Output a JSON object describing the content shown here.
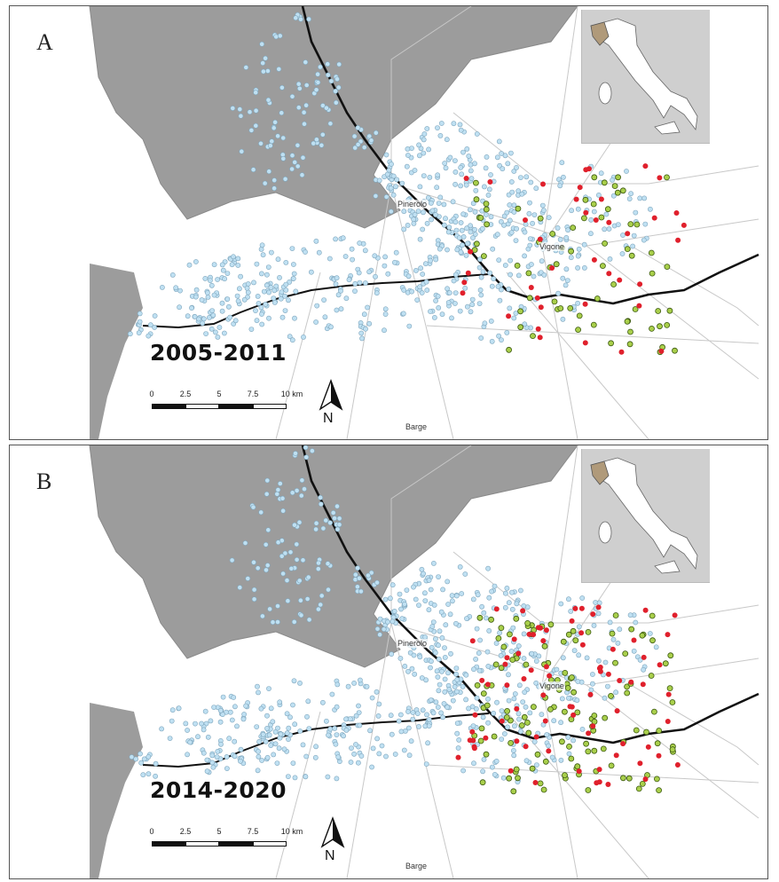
{
  "panels": [
    {
      "letter": "A",
      "period": "2005-2011"
    },
    {
      "letter": "B",
      "period": "2014-2020"
    }
  ],
  "towns": {
    "pinerolo": "Pinerolo",
    "vigone": "Vigone",
    "barge": "Barge"
  },
  "scale_bar": {
    "ticks": [
      "0",
      "2.5",
      "5",
      "7.5",
      "10 km"
    ]
  },
  "north_arrow": {
    "label": "N"
  },
  "colors": {
    "mountain": "#9c9c9c",
    "river": "#111111",
    "roads": "#c8c8c8",
    "point_negative": "#bfe0f2",
    "point_green": "#a9cf4b",
    "point_red": "#e0202c",
    "inset_bg": "#cfcfcf",
    "inset_italy": "#ffffff",
    "inset_piedmont": "#b09a7a"
  },
  "icons": {
    "north_arrow": "north-arrow-icon",
    "inset_map": "italy-locator-map"
  }
}
